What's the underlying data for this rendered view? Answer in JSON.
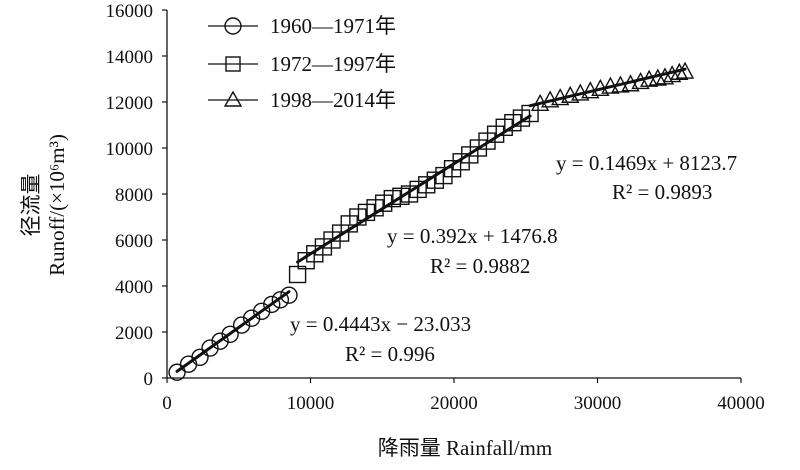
{
  "chart_data": {
    "type": "scatter",
    "xlabel": "降雨量 Rainfall/mm",
    "ylabel_cn": "径流量",
    "ylabel_en": "Runoff/(×10⁶m³)",
    "xlim": [
      0,
      40000
    ],
    "ylim": [
      0,
      16000
    ],
    "x_ticks": [
      "0",
      "10000",
      "20000",
      "30000",
      "40000"
    ],
    "y_ticks": [
      "0",
      "2000",
      "4000",
      "6000",
      "8000",
      "10000",
      "12000",
      "14000",
      "16000"
    ],
    "grid": false,
    "legend_position": "top-left",
    "series": [
      {
        "name": "1960—1971年",
        "marker": "circle",
        "x": [
          700,
          1500,
          2300,
          3000,
          3700,
          4400,
          5200,
          5900,
          6600,
          7300,
          7900,
          8500
        ],
        "y": [
          250,
          600,
          900,
          1300,
          1600,
          1900,
          2300,
          2600,
          2900,
          3200,
          3400,
          3600
        ]
      },
      {
        "name": "1972—1997年",
        "marker": "square",
        "x": [
          9100,
          9700,
          10300,
          10900,
          11500,
          12100,
          12700,
          13300,
          13900,
          14500,
          15100,
          15700,
          16300,
          16900,
          17500,
          18100,
          18700,
          19300,
          19900,
          20500,
          21100,
          21700,
          22300,
          22900,
          23500,
          24100,
          24700,
          25300
        ],
        "y": [
          4500,
          5100,
          5400,
          5700,
          6000,
          6300,
          6700,
          7000,
          7200,
          7400,
          7600,
          7800,
          7900,
          8000,
          8200,
          8400,
          8600,
          8800,
          9100,
          9400,
          9700,
          10000,
          10300,
          10600,
          10900,
          11100,
          11300,
          11500
        ]
      },
      {
        "name": "1998—2014年",
        "marker": "triangle",
        "x": [
          26000,
          26700,
          27400,
          28100,
          28800,
          29500,
          30200,
          30900,
          31600,
          32300,
          33000,
          33600,
          34200,
          34700,
          35200,
          35700,
          36100
        ],
        "y": [
          11900,
          12050,
          12150,
          12250,
          12350,
          12450,
          12550,
          12650,
          12700,
          12750,
          12850,
          12950,
          13000,
          13050,
          13150,
          13250,
          13300
        ]
      }
    ],
    "fits": [
      {
        "equation_y": "y = 0.4443x − 23.033",
        "r2_label": "R² = 0.996",
        "slope": 0.4443,
        "intercept": -23.033,
        "x_range": [
          700,
          8500
        ]
      },
      {
        "equation_y": "y = 0.392x + 1476.8",
        "r2_label": "R² = 0.9882",
        "slope": 0.392,
        "intercept": 1476.8,
        "x_range": [
          9100,
          25300
        ]
      },
      {
        "equation_y": "y = 0.1469x + 8123.7",
        "r2_label": "R² = 0.9893",
        "slope": 0.1469,
        "intercept": 8123.7,
        "x_range": [
          25300,
          36100
        ]
      }
    ]
  }
}
